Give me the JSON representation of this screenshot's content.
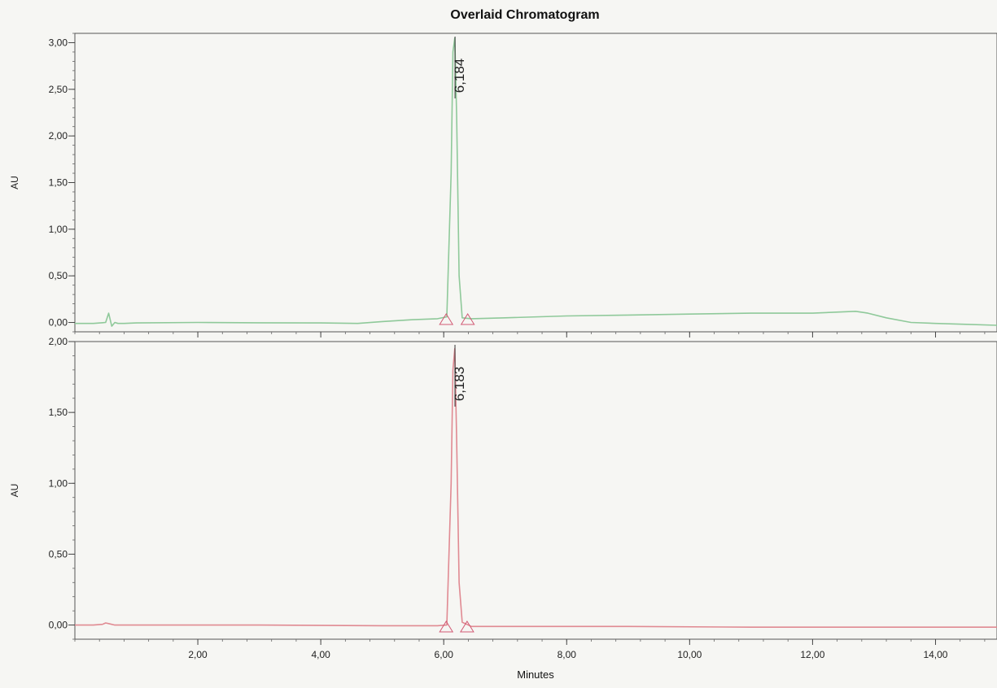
{
  "chart_data": {
    "type": "line",
    "title": "Overlaid Chromatogram",
    "xlabel": "Minutes",
    "xlim": [
      0,
      15
    ],
    "x_ticks": [
      2,
      4,
      6,
      8,
      10,
      12,
      14
    ],
    "x_tick_labels": [
      "2,00",
      "4,00",
      "6,00",
      "8,00",
      "10,00",
      "12,00",
      "14,00"
    ],
    "grid": false,
    "panels": [
      {
        "ylabel": "AU",
        "ylim": [
          -0.1,
          3.1
        ],
        "y_ticks": [
          0,
          0.5,
          1.0,
          1.5,
          2.0,
          2.5,
          3.0
        ],
        "y_tick_labels": [
          "0,00",
          "0,50",
          "1,00",
          "1,50",
          "2,00",
          "2,50",
          "3,00"
        ],
        "series": [
          {
            "color": "#8fc99a",
            "x": [
              0,
              0.3,
              0.5,
              0.55,
              0.6,
              0.65,
              0.7,
              0.8,
              1.0,
              2.0,
              3.0,
              4.0,
              4.6,
              5.0,
              5.5,
              5.9,
              6.05,
              6.12,
              6.15,
              6.18,
              6.21,
              6.25,
              6.3,
              6.45,
              7.0,
              8.0,
              9.0,
              10.0,
              11.0,
              12.0,
              12.7,
              12.9,
              13.2,
              13.6,
              14.0,
              14.5,
              15.0
            ],
            "y": [
              -0.01,
              -0.01,
              0.0,
              0.1,
              -0.04,
              0.0,
              -0.01,
              -0.01,
              -0.005,
              0.0,
              -0.003,
              -0.005,
              -0.01,
              0.01,
              0.03,
              0.04,
              0.06,
              1.6,
              2.9,
              3.05,
              2.2,
              0.5,
              0.05,
              0.04,
              0.05,
              0.07,
              0.08,
              0.09,
              0.1,
              0.1,
              0.12,
              0.1,
              0.05,
              0.0,
              -0.01,
              -0.02,
              -0.03
            ]
          }
        ],
        "peak_label": "6,184",
        "peak_x": 6.184,
        "integration_marks_x": [
          6.04,
          6.39
        ]
      },
      {
        "ylabel": "AU",
        "ylim": [
          -0.1,
          2.0
        ],
        "y_ticks": [
          0,
          0.5,
          1.0,
          1.5,
          2.0
        ],
        "y_tick_labels": [
          "0,00",
          "0,50",
          "1,00",
          "1,50",
          "2,00"
        ],
        "series": [
          {
            "color": "#e08a92",
            "x": [
              0,
              0.3,
              0.45,
              0.5,
              0.55,
              0.65,
              1.0,
              3.0,
              5.0,
              5.9,
              6.05,
              6.12,
              6.15,
              6.18,
              6.21,
              6.25,
              6.3,
              6.45,
              7.0,
              9.0,
              11.0,
              13.0,
              15.0
            ],
            "y": [
              0.0,
              0.0,
              0.005,
              0.015,
              0.01,
              0.0,
              0.0,
              0.0,
              -0.005,
              -0.005,
              0.0,
              1.0,
              1.8,
              1.95,
              1.3,
              0.3,
              0.02,
              -0.01,
              -0.01,
              -0.01,
              -0.015,
              -0.015,
              -0.015
            ]
          }
        ],
        "peak_label": "6,183",
        "peak_x": 6.183,
        "integration_marks_x": [
          6.04,
          6.38
        ]
      }
    ]
  }
}
